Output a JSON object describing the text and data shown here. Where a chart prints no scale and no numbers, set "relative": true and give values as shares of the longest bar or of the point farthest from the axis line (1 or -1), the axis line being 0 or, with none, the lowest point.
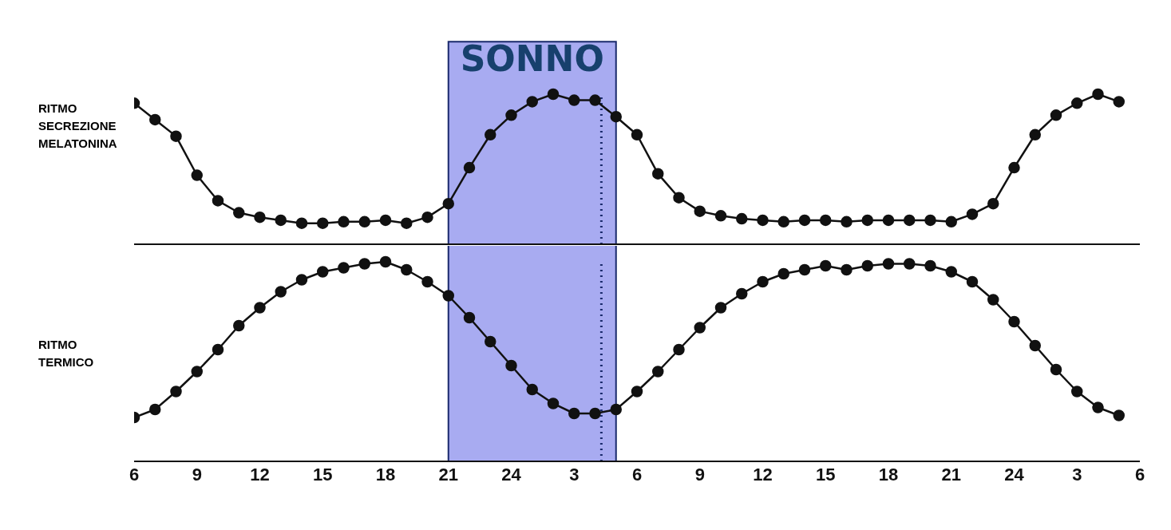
{
  "chart_data": [
    {
      "type": "line",
      "ylabel": "RITMO SECREZIONE MELATONINA",
      "relative": true,
      "marker": "circle",
      "line_style": "solid",
      "tick_labels": false,
      "categories": [
        "6",
        null,
        null,
        "9",
        null,
        null,
        "12",
        null,
        null,
        "15",
        null,
        null,
        "18",
        null,
        null,
        "21",
        null,
        null,
        "24",
        null,
        null,
        "3",
        null,
        null,
        "6",
        null,
        null,
        "9",
        null,
        null,
        "12",
        null,
        null,
        "15",
        null,
        null,
        "18",
        null,
        null,
        "21",
        null,
        null,
        "24",
        null,
        null,
        "3",
        null,
        null,
        "6"
      ],
      "series": [
        {
          "color": "#111111",
          "values": [
            0.94,
            0.83,
            0.72,
            0.46,
            0.29,
            0.21,
            0.18,
            0.16,
            0.14,
            0.14,
            0.15,
            0.15,
            0.16,
            0.14,
            0.18,
            0.27,
            0.51,
            0.73,
            0.86,
            0.95,
            1,
            0.96,
            0.96,
            0.85,
            0.73,
            0.47,
            0.31,
            0.22,
            0.19,
            0.17,
            0.16,
            0.15,
            0.16,
            0.16,
            0.15,
            0.16,
            0.16,
            0.16,
            0.16,
            0.15,
            0.2,
            0.27,
            0.51,
            0.73,
            0.86,
            0.94,
            1,
            0.95,
            null
          ]
        }
      ],
      "annotations": [
        "SONNO"
      ]
    },
    {
      "type": "line",
      "ylabel": "RITMO TERMICO",
      "relative": true,
      "marker": "circle",
      "line_style": "solid",
      "categories": [
        "6",
        null,
        null,
        "9",
        null,
        null,
        "12",
        null,
        null,
        "15",
        null,
        null,
        "18",
        null,
        null,
        "21",
        null,
        null,
        "24",
        null,
        null,
        "3",
        null,
        null,
        "6",
        null,
        null,
        "9",
        null,
        null,
        "12",
        null,
        null,
        "15",
        null,
        null,
        "18",
        null,
        null,
        "21",
        null,
        null,
        "24",
        null,
        null,
        "3",
        null,
        null,
        "6"
      ],
      "series": [
        {
          "color": "#111111",
          "values": [
            0.22,
            0.26,
            0.35,
            0.45,
            0.56,
            0.68,
            0.77,
            0.85,
            0.91,
            0.95,
            0.97,
            0.99,
            1,
            0.96,
            0.9,
            0.83,
            0.72,
            0.6,
            0.48,
            0.36,
            0.29,
            0.24,
            0.24,
            0.26,
            0.35,
            0.45,
            0.56,
            0.67,
            0.77,
            0.84,
            0.9,
            0.94,
            0.96,
            0.98,
            0.96,
            0.98,
            0.99,
            0.99,
            0.98,
            0.95,
            0.9,
            0.81,
            0.7,
            0.58,
            0.46,
            0.35,
            0.27,
            0.23,
            null
          ]
        }
      ],
      "tick_labels": "x"
    }
  ]
}
